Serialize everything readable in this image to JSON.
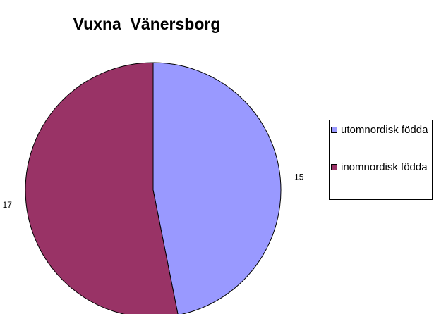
{
  "chart_data": {
    "type": "pie",
    "title": "Vuxna  Vänersborg",
    "categories": [
      "utomnordisk födda",
      "inomnordisk födda"
    ],
    "values": [
      15,
      17
    ],
    "colors": [
      "#9999ff",
      "#993366"
    ],
    "legend": "right"
  }
}
